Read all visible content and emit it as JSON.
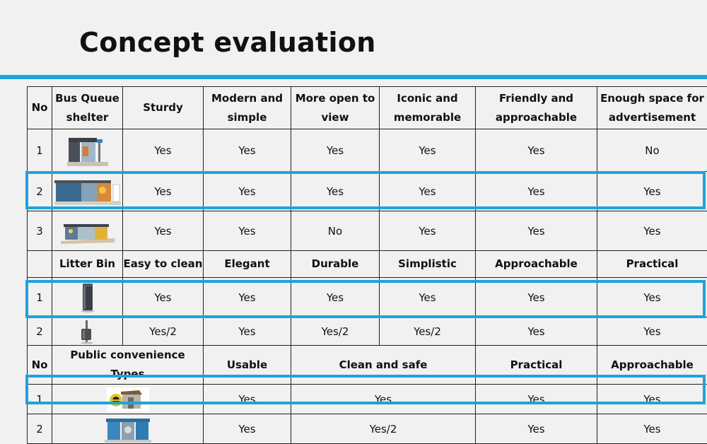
{
  "title": "Concept evaluation",
  "accent_color": "#1fa3dc",
  "bus": {
    "headers": [
      "No",
      "Bus Queue shelter",
      "Sturdy",
      "Modern and simple",
      "More open to view",
      "Iconic and memorable",
      "Friendly and approachable",
      "Enough space for advertisement"
    ],
    "rows": [
      {
        "no": "1",
        "image": "bus-shelter-1-image",
        "values": [
          "Yes",
          "Yes",
          "Yes",
          "Yes",
          "Yes",
          "No"
        ]
      },
      {
        "no": "2",
        "image": "bus-shelter-2-image",
        "values": [
          "Yes",
          "Yes",
          "Yes",
          "Yes",
          "Yes",
          "Yes"
        ]
      },
      {
        "no": "3",
        "image": "bus-shelter-3-image",
        "values": [
          "Yes",
          "Yes",
          "No",
          "Yes",
          "Yes",
          "Yes"
        ]
      }
    ]
  },
  "bin": {
    "headers": [
      "",
      "Litter Bin",
      "Easy to clean",
      "Elegant",
      "Durable",
      "Simplistic",
      "Approachable",
      "Practical"
    ],
    "rows": [
      {
        "no": "1",
        "image": "litter-bin-1-image",
        "values": [
          "Yes",
          "Yes",
          "Yes",
          "Yes",
          "Yes",
          "Yes"
        ]
      },
      {
        "no": "2",
        "image": "litter-bin-2-image",
        "values": [
          "Yes/2",
          "Yes",
          "Yes/2",
          "Yes/2",
          "Yes",
          "Yes"
        ]
      }
    ]
  },
  "toilet": {
    "headers": [
      "No",
      "Public convenience Types",
      "Usable",
      "Clean and safe",
      "Practical",
      "Approachable"
    ],
    "rows": [
      {
        "no": "1",
        "image": "public-convenience-1-image",
        "values": [
          "Yes",
          "Yes",
          "Yes",
          "Yes"
        ]
      },
      {
        "no": "2",
        "image": "public-convenience-2-image",
        "values": [
          "Yes",
          "Yes/2",
          "Yes",
          "Yes"
        ]
      }
    ]
  }
}
